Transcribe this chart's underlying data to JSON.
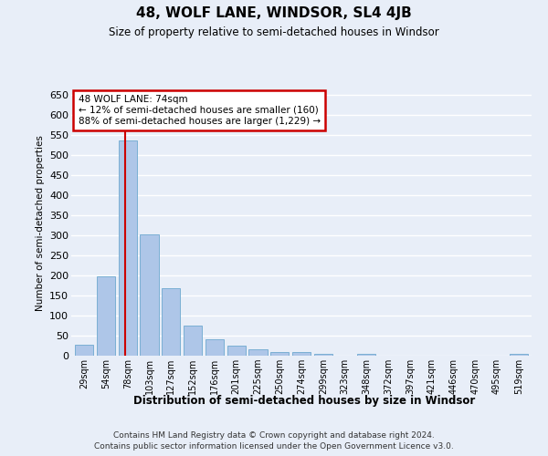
{
  "title": "48, WOLF LANE, WINDSOR, SL4 4JB",
  "subtitle": "Size of property relative to semi-detached houses in Windsor",
  "xlabel": "Distribution of semi-detached houses by size in Windsor",
  "ylabel": "Number of semi-detached properties",
  "footer_line1": "Contains HM Land Registry data © Crown copyright and database right 2024.",
  "footer_line2": "Contains public sector information licensed under the Open Government Licence v3.0.",
  "categories": [
    "29sqm",
    "54sqm",
    "78sqm",
    "103sqm",
    "127sqm",
    "152sqm",
    "176sqm",
    "201sqm",
    "225sqm",
    "250sqm",
    "274sqm",
    "299sqm",
    "323sqm",
    "348sqm",
    "372sqm",
    "397sqm",
    "421sqm",
    "446sqm",
    "470sqm",
    "495sqm",
    "519sqm"
  ],
  "values": [
    28,
    198,
    538,
    302,
    168,
    74,
    42,
    26,
    15,
    10,
    10,
    5,
    0,
    5,
    0,
    0,
    0,
    0,
    0,
    0,
    5
  ],
  "bar_color": "#aec6e8",
  "bar_edge_color": "#7aafd4",
  "background_color": "#e8eef8",
  "grid_color": "#ffffff",
  "property_line_x": 1.87,
  "property_label": "48 WOLF LANE: 74sqm",
  "annotation_smaller": "← 12% of semi-detached houses are smaller (160)",
  "annotation_larger": "88% of semi-detached houses are larger (1,229) →",
  "annotation_box_color": "#ffffff",
  "annotation_box_edge": "#cc0000",
  "property_line_color": "#cc0000",
  "ylim": [
    0,
    660
  ],
  "yticks": [
    0,
    50,
    100,
    150,
    200,
    250,
    300,
    350,
    400,
    450,
    500,
    550,
    600,
    650
  ]
}
